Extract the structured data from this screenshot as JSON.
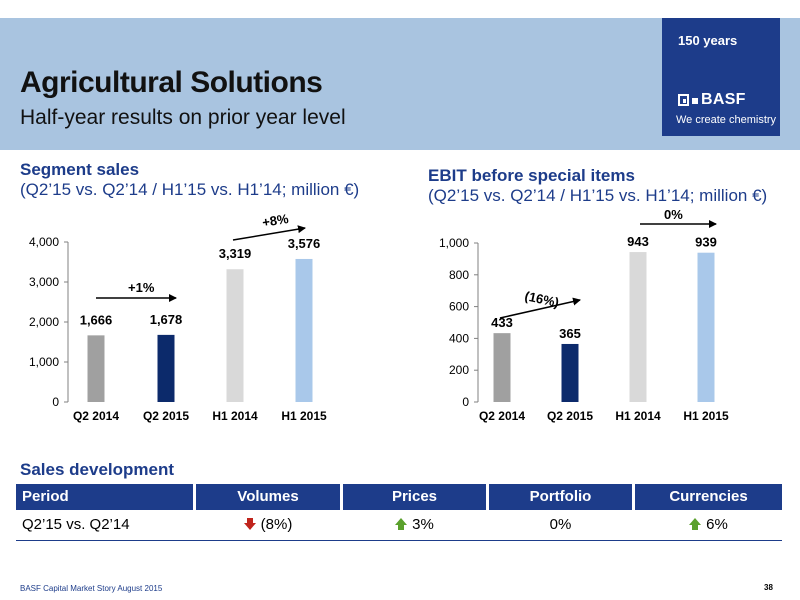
{
  "header": {
    "title": "Agricultural Solutions",
    "subtitle": "Half-year results on prior year level",
    "logo_years": "150 years",
    "logo_name": "BASF",
    "logo_tagline": "We create chemistry"
  },
  "left_panel": {
    "title": "Segment sales",
    "subtitle": "(Q2’15 vs. Q2’14 / H1’15 vs. H1’14; million €)",
    "change_q2": "+1%",
    "change_h1": "+8%"
  },
  "right_panel": {
    "title": "EBIT before special items",
    "subtitle": "(Q2’15 vs. Q2’14 / H1’15 vs. H1’14; million €)",
    "change_q2": "(16%)",
    "change_h1": "0%"
  },
  "chart_data": [
    {
      "type": "bar",
      "categories": [
        "Q2 2014",
        "Q2 2015",
        "H1 2014",
        "H1 2015"
      ],
      "values": [
        1666,
        1678,
        3319,
        3576
      ],
      "value_labels": [
        "1,666",
        "1,678",
        "3,319",
        "3,576"
      ],
      "colors": [
        "#a0a0a0",
        "#0c2a6b",
        "#d9d9d9",
        "#a9c8ea"
      ],
      "ylim": [
        0,
        4000
      ],
      "yticks": [
        0,
        1000,
        2000,
        3000,
        4000
      ],
      "ytick_labels": [
        "0",
        "1,000",
        "2,000",
        "3,000",
        "4,000"
      ],
      "grid": false,
      "xlabel": "",
      "ylabel": ""
    },
    {
      "type": "bar",
      "categories": [
        "Q2 2014",
        "Q2 2015",
        "H1 2014",
        "H1 2015"
      ],
      "values": [
        433,
        365,
        943,
        939
      ],
      "value_labels": [
        "433",
        "365",
        "943",
        "939"
      ],
      "colors": [
        "#a0a0a0",
        "#0c2a6b",
        "#d9d9d9",
        "#a9c8ea"
      ],
      "ylim": [
        0,
        1000
      ],
      "yticks": [
        0,
        200,
        400,
        600,
        800,
        1000
      ],
      "ytick_labels": [
        "0",
        "200",
        "400",
        "600",
        "800",
        "1,000"
      ],
      "grid": false,
      "xlabel": "",
      "ylabel": ""
    }
  ],
  "sales_development": {
    "title": "Sales development",
    "columns": [
      "Period",
      "Volumes",
      "Prices",
      "Portfolio",
      "Currencies"
    ],
    "rows": [
      {
        "period": "Q2’15 vs. Q2’14",
        "volumes": "(8%)",
        "volumes_arrow": "down-arrow-icon",
        "prices": "3%",
        "prices_arrow": "up-arrow-icon",
        "portfolio": "0%",
        "currencies": "6%",
        "currencies_arrow": "up-arrow-icon"
      }
    ],
    "arrow_colors": {
      "up": "#5aa02c",
      "down": "#c0241c"
    }
  },
  "footer": {
    "source": "BASF Capital Market Story August 2015",
    "page": "38"
  }
}
